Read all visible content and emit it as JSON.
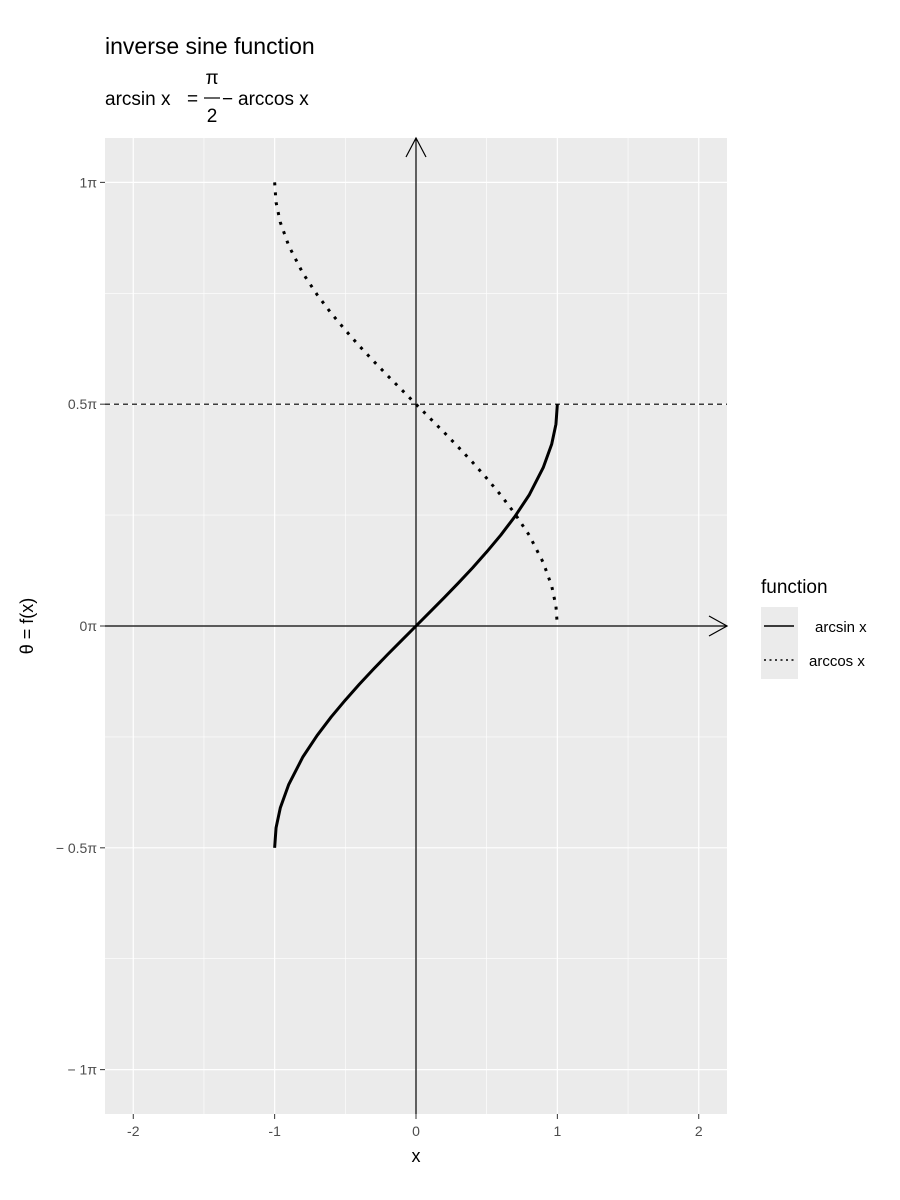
{
  "chart_data": {
    "type": "line",
    "title": "inverse sine function",
    "subtitle": {
      "lhs": "arcsin x",
      "equals": "=",
      "numerator": "π",
      "denominator": "2",
      "minus": "−",
      "rhs": "arccos x"
    },
    "xlabel": "x",
    "ylabel": "θ = f(x)",
    "xlim": [
      -2.2,
      2.2
    ],
    "ylim": [
      -1.1,
      1.1
    ],
    "y_unit": "π",
    "x_ticks": [
      {
        "value": -2,
        "label": "-2"
      },
      {
        "value": -1,
        "label": "-1"
      },
      {
        "value": 0,
        "label": "0"
      },
      {
        "value": 1,
        "label": "1"
      },
      {
        "value": 2,
        "label": "2"
      }
    ],
    "y_ticks": [
      {
        "value": 1,
        "label": "1π"
      },
      {
        "value": 0.5,
        "label": "0.5π"
      },
      {
        "value": 0,
        "label": "0π"
      },
      {
        "value": -0.5,
        "label": "− 0.5π"
      },
      {
        "value": -1,
        "label": "− 1π"
      }
    ],
    "reference_lines": [
      {
        "orientation": "horizontal",
        "y": 0.5,
        "style": "dashed"
      }
    ],
    "axes_arrows": true,
    "grid": true,
    "background": "#ebebeb",
    "legend": {
      "title": "function",
      "position": "right",
      "entries": [
        {
          "label": "arcsin x",
          "linetype": "solid"
        },
        {
          "label": "arccos x",
          "linetype": "dotted"
        }
      ]
    },
    "series": [
      {
        "name": "arcsin x",
        "linetype": "solid",
        "x": [
          -1,
          -0.99,
          -0.96,
          -0.9,
          -0.8,
          -0.7,
          -0.6,
          -0.5,
          -0.4,
          -0.3,
          -0.2,
          -0.1,
          0,
          0.1,
          0.2,
          0.3,
          0.4,
          0.5,
          0.6,
          0.7,
          0.8,
          0.9,
          0.96,
          0.99,
          1
        ],
        "y": [
          -0.5,
          -0.455,
          -0.41,
          -0.357,
          -0.295,
          -0.247,
          -0.205,
          -0.167,
          -0.131,
          -0.097,
          -0.064,
          -0.032,
          0,
          0.032,
          0.064,
          0.097,
          0.131,
          0.167,
          0.205,
          0.247,
          0.295,
          0.357,
          0.41,
          0.455,
          0.5
        ]
      },
      {
        "name": "arccos x",
        "linetype": "dotted",
        "x": [
          -1,
          -0.99,
          -0.96,
          -0.9,
          -0.8,
          -0.7,
          -0.6,
          -0.5,
          -0.4,
          -0.3,
          -0.2,
          -0.1,
          0,
          0.1,
          0.2,
          0.3,
          0.4,
          0.5,
          0.6,
          0.7,
          0.8,
          0.9,
          0.96,
          0.99,
          1
        ],
        "y": [
          1,
          0.955,
          0.91,
          0.857,
          0.795,
          0.747,
          0.705,
          0.667,
          0.631,
          0.597,
          0.564,
          0.532,
          0.5,
          0.468,
          0.436,
          0.403,
          0.369,
          0.333,
          0.295,
          0.253,
          0.205,
          0.143,
          0.09,
          0.045,
          0
        ]
      }
    ]
  }
}
